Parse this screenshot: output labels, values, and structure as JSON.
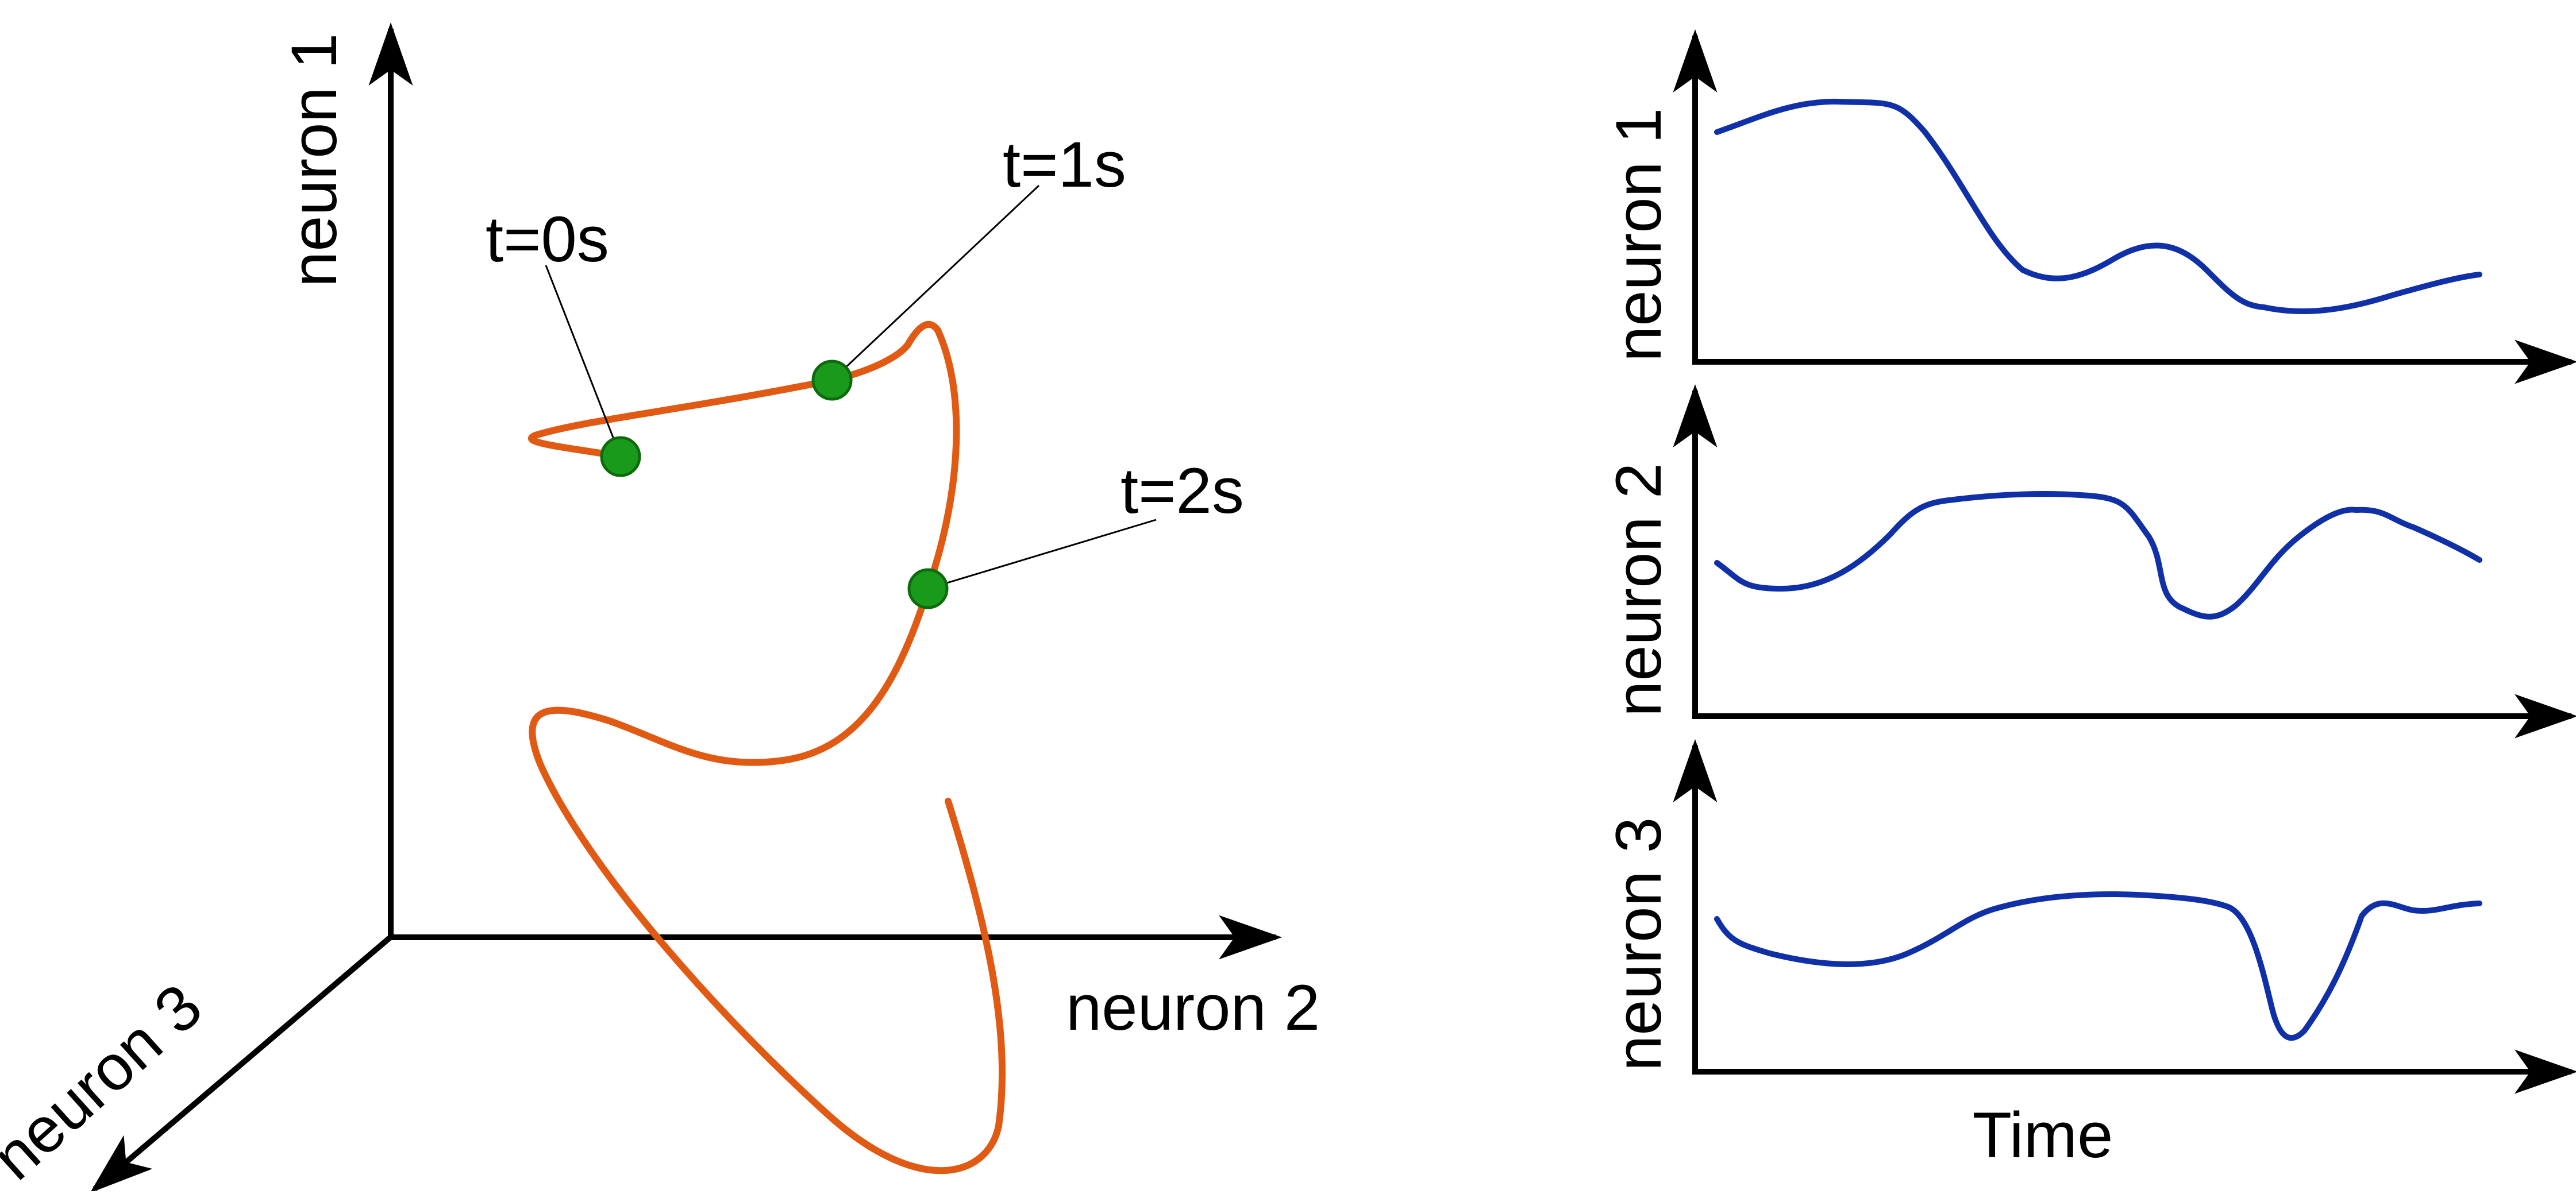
{
  "colors": {
    "axis": "#000000",
    "trajectory": "#e05a14",
    "time_point_fill": "#1a9a1a",
    "time_point_stroke": "#0d6b0d",
    "trace": "#1030a8"
  },
  "state_space": {
    "axis_y_label": "neuron 1",
    "axis_x_label": "neuron 2",
    "axis_z_label": "neuron 3",
    "time_points": [
      {
        "label": "t=0s"
      },
      {
        "label": "t=1s"
      },
      {
        "label": "t=2s"
      }
    ]
  },
  "traces": {
    "panels": [
      {
        "ylabel": "neuron 1"
      },
      {
        "ylabel": "neuron 2"
      },
      {
        "ylabel": "neuron 3"
      }
    ],
    "xlabel": "Time"
  }
}
